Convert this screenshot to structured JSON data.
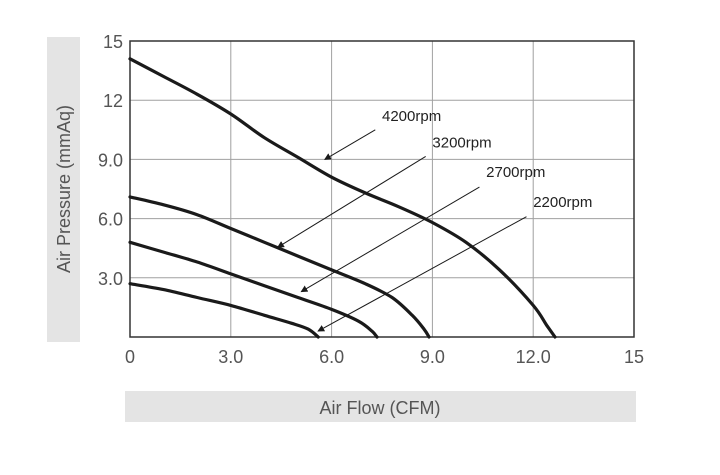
{
  "chart_data": {
    "type": "line",
    "xlabel": "Air Flow (CFM)",
    "ylabel": "Air Pressure (mmAq)",
    "xlim": [
      0,
      15
    ],
    "ylim": [
      0,
      15
    ],
    "x_ticks": [
      {
        "value": 0,
        "label": "0"
      },
      {
        "value": 3,
        "label": "3.0"
      },
      {
        "value": 6,
        "label": "6.0"
      },
      {
        "value": 9,
        "label": "9.0"
      },
      {
        "value": 12,
        "label": "12.0"
      },
      {
        "value": 15,
        "label": "15"
      }
    ],
    "y_ticks": [
      {
        "value": 3,
        "label": "3.0"
      },
      {
        "value": 6,
        "label": "6.0"
      },
      {
        "value": 9,
        "label": "9.0"
      },
      {
        "value": 12,
        "label": "12"
      },
      {
        "value": 15,
        "label": "15"
      }
    ],
    "grid": true,
    "series": [
      {
        "name": "4200rpm",
        "points": [
          [
            0,
            14.1
          ],
          [
            1,
            13.2
          ],
          [
            2,
            12.3
          ],
          [
            3,
            11.3
          ],
          [
            4,
            10.1
          ],
          [
            5,
            9.1
          ],
          [
            6,
            8.1
          ],
          [
            7,
            7.3
          ],
          [
            8,
            6.6
          ],
          [
            9,
            5.8
          ],
          [
            10,
            4.8
          ],
          [
            11,
            3.4
          ],
          [
            12,
            1.6
          ],
          [
            12.4,
            0.6
          ],
          [
            12.65,
            0
          ]
        ]
      },
      {
        "name": "3200rpm",
        "points": [
          [
            0,
            7.1
          ],
          [
            1,
            6.7
          ],
          [
            2,
            6.2
          ],
          [
            3,
            5.5
          ],
          [
            4,
            4.8
          ],
          [
            5,
            4.1
          ],
          [
            6,
            3.4
          ],
          [
            7,
            2.7
          ],
          [
            7.8,
            2
          ],
          [
            8.4,
            1.1
          ],
          [
            8.75,
            0.4
          ],
          [
            8.9,
            0
          ]
        ]
      },
      {
        "name": "2700rpm",
        "points": [
          [
            0,
            4.8
          ],
          [
            1,
            4.3
          ],
          [
            2,
            3.8
          ],
          [
            3,
            3.2
          ],
          [
            4,
            2.6
          ],
          [
            5,
            2.0
          ],
          [
            6,
            1.4
          ],
          [
            6.8,
            0.8
          ],
          [
            7.2,
            0.3
          ],
          [
            7.35,
            0
          ]
        ]
      },
      {
        "name": "2200rpm",
        "points": [
          [
            0,
            2.7
          ],
          [
            1,
            2.4
          ],
          [
            2,
            2.0
          ],
          [
            3,
            1.6
          ],
          [
            4,
            1.1
          ],
          [
            4.8,
            0.7
          ],
          [
            5.3,
            0.4
          ],
          [
            5.6,
            0
          ]
        ]
      }
    ],
    "annotations": [
      {
        "text": "4200rpm",
        "label_at": [
          7.5,
          10.95
        ],
        "arrow_from": [
          7.3,
          10.5
        ],
        "arrow_to": [
          5.8,
          9.0
        ]
      },
      {
        "text": "3200rpm",
        "label_at": [
          9.0,
          9.6
        ],
        "arrow_from": [
          8.8,
          9.15
        ],
        "arrow_to": [
          4.4,
          4.55
        ]
      },
      {
        "text": "2700rpm",
        "label_at": [
          10.6,
          8.1
        ],
        "arrow_from": [
          10.4,
          7.6
        ],
        "arrow_to": [
          5.1,
          2.3
        ]
      },
      {
        "text": "2200rpm",
        "label_at": [
          12.0,
          6.6
        ],
        "arrow_from": [
          11.8,
          6.1
        ],
        "arrow_to": [
          5.6,
          0.3
        ]
      }
    ]
  },
  "colors": {
    "curve": "#1a1a1a",
    "grid": "#a0a0a0",
    "frame": "#333333",
    "label_band": "#e4e4e4",
    "tick_text": "#555555",
    "label_text": "#555555",
    "annotation_text": "#222222"
  }
}
